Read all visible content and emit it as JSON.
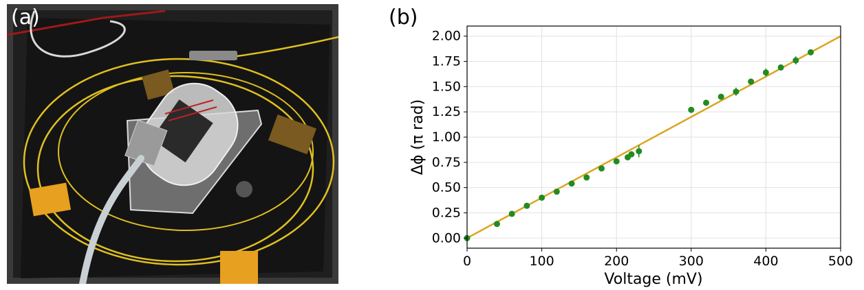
{
  "panels": {
    "a_label": "(a)",
    "b_label": "(b)"
  },
  "photo": {
    "description_icons": [
      "fiber-stretcher-device",
      "optical-fiber",
      "connector-cable",
      "kapton-tape"
    ]
  },
  "chart_data": {
    "type": "scatter",
    "xlabel": "Voltage (mV)",
    "ylabel": "Δϕ (π rad)",
    "xlim": [
      0,
      500
    ],
    "ylim": [
      -0.1,
      2.1
    ],
    "xticks": [
      0,
      100,
      200,
      300,
      400,
      500
    ],
    "yticks": [
      0.0,
      0.25,
      0.5,
      0.75,
      1.0,
      1.25,
      1.5,
      1.75,
      2.0
    ],
    "xtick_labels": [
      "0",
      "100",
      "200",
      "300",
      "400",
      "500"
    ],
    "ytick_labels": [
      "0.00",
      "0.25",
      "0.50",
      "0.75",
      "1.00",
      "1.25",
      "1.50",
      "1.75",
      "2.00"
    ],
    "grid": true,
    "colors": {
      "points": "#228B22",
      "fit": "#DAA520"
    },
    "points": [
      {
        "x": 0,
        "y": 0.0,
        "err": 0.01
      },
      {
        "x": 40,
        "y": 0.14,
        "err": 0.01
      },
      {
        "x": 60,
        "y": 0.24,
        "err": 0.01
      },
      {
        "x": 80,
        "y": 0.32,
        "err": 0.01
      },
      {
        "x": 100,
        "y": 0.4,
        "err": 0.02
      },
      {
        "x": 120,
        "y": 0.46,
        "err": 0.01
      },
      {
        "x": 140,
        "y": 0.54,
        "err": 0.01
      },
      {
        "x": 160,
        "y": 0.6,
        "err": 0.01
      },
      {
        "x": 180,
        "y": 0.69,
        "err": 0.02
      },
      {
        "x": 200,
        "y": 0.76,
        "err": 0.01
      },
      {
        "x": 215,
        "y": 0.8,
        "err": 0.01
      },
      {
        "x": 220,
        "y": 0.83,
        "err": 0.01
      },
      {
        "x": 230,
        "y": 0.86,
        "err": 0.06
      },
      {
        "x": 300,
        "y": 1.27,
        "err": 0.02
      },
      {
        "x": 320,
        "y": 1.34,
        "err": 0.02
      },
      {
        "x": 340,
        "y": 1.4,
        "err": 0.01
      },
      {
        "x": 360,
        "y": 1.45,
        "err": 0.04
      },
      {
        "x": 380,
        "y": 1.55,
        "err": 0.02
      },
      {
        "x": 400,
        "y": 1.64,
        "err": 0.04
      },
      {
        "x": 420,
        "y": 1.69,
        "err": 0.03
      },
      {
        "x": 440,
        "y": 1.76,
        "err": 0.04
      },
      {
        "x": 460,
        "y": 1.84,
        "err": 0.03
      }
    ],
    "fit": {
      "x": [
        0,
        500
      ],
      "y": [
        0.0,
        2.0
      ]
    }
  }
}
